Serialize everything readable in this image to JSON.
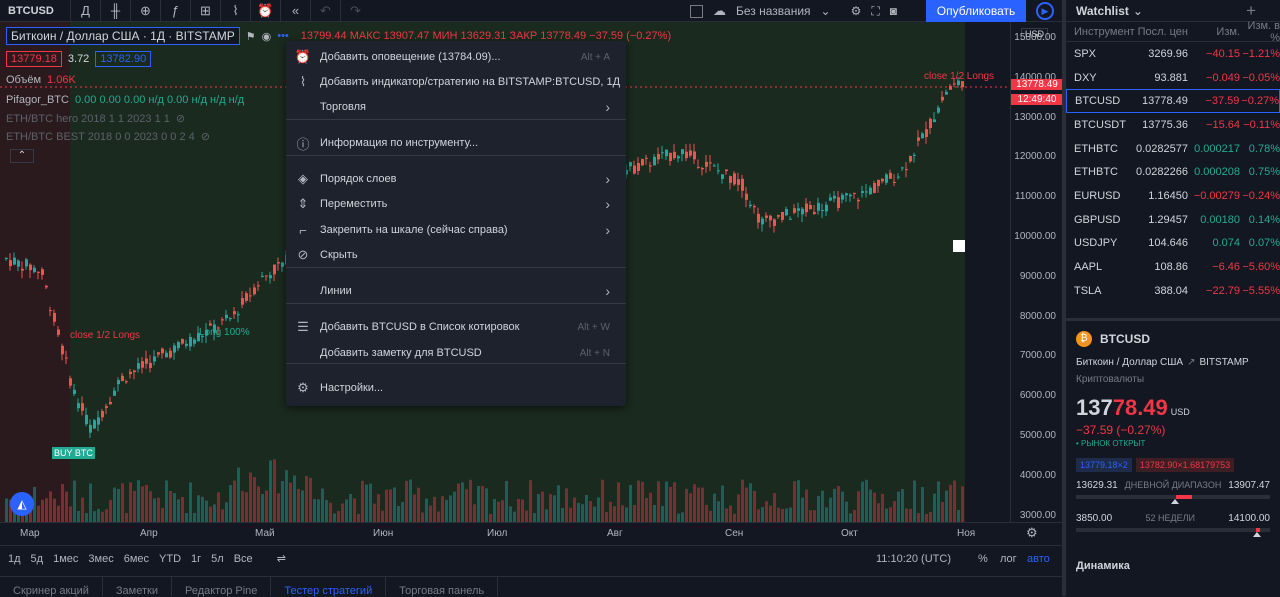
{
  "toolbar": {
    "symbol": "BTCUSD",
    "interval_icon": "candles-icon",
    "layout_name": "Без названия",
    "publish": "Опубликовать"
  },
  "legend": {
    "title": "Биткоин / Доллар США · 1Д · BITSTAMP",
    "ohlc": "13799.44  МАКС 13907.47  МИН 13629.31  ЗАКР 13778.49  −37.59 (−0.27%)",
    "bid": "13779.18",
    "spread": "3.72",
    "ask": "13782.90",
    "volume_label": "Объём",
    "volume_value": "1.06K",
    "ind1": "Pifagor_BTC",
    "ind1_vals": "0.00  0.00  0.00  н/д  0.00  н/д  н/д  н/д",
    "ind2": "ETH/BTC hero 2018 1 1 2023 1 1",
    "ind3": "ETH/BTC BEST 2018 0 0 2023 0 0 2 4"
  },
  "price_axis": {
    "currency": "USD",
    "ticks": [
      "15000.00",
      "14000.00",
      "13000.00",
      "12000.00",
      "11000.00",
      "10000.00",
      "9000.00",
      "8000.00",
      "7000.00",
      "6000.00",
      "5000.00",
      "4000.00",
      "3000.00"
    ],
    "last_price": "13778.49",
    "countdown": "12:49:40"
  },
  "annotations": {
    "close_half_right": "close 1/2 Longs",
    "close_half_left": "close 1/2 Longs",
    "long_100": "Long 100%",
    "buy": "BUY BTC"
  },
  "time_axis": [
    "Мар",
    "Апр",
    "Май",
    "Июн",
    "Июл",
    "Авг",
    "Сен",
    "Окт",
    "Ноя"
  ],
  "range_bar": {
    "ranges": [
      "1д",
      "5д",
      "1мес",
      "3мес",
      "6мес",
      "YTD",
      "1г",
      "5л",
      "Все"
    ],
    "time": "11:10:20 (UTC)",
    "pct": "%",
    "log": "лог",
    "auto": "авто"
  },
  "bottom_tabs": [
    "Скринер акций",
    "Заметки",
    "Редактор Pine",
    "Тестер стратегий",
    "Торговая панель"
  ],
  "context_menu": [
    {
      "icon": "alarm-clock-icon",
      "label": "Добавить оповещение (13784.09)...",
      "shortcut": "Alt + A"
    },
    {
      "icon": "indicator-icon",
      "label": "Добавить индикатор/стратегию на BITSTAMP:BTCUSD, 1Д",
      "shortcut": ""
    },
    {
      "icon": "",
      "label": "Торговля",
      "shortcut": "",
      "arrow": true
    },
    {
      "icon": "info-icon",
      "label": "Информация по инструменту...",
      "shortcut": ""
    },
    {
      "icon": "layers-icon",
      "label": "Порядок слоев",
      "shortcut": "",
      "arrow": true
    },
    {
      "icon": "move-icon",
      "label": "Переместить",
      "shortcut": "",
      "arrow": true
    },
    {
      "icon": "pin-scale-icon",
      "label": "Закрепить на шкале (сейчас справа)",
      "shortcut": "",
      "arrow": true
    },
    {
      "icon": "hide-eye-icon",
      "label": "Скрыть",
      "shortcut": ""
    },
    {
      "icon": "",
      "label": "Линии",
      "shortcut": "",
      "arrow": true
    },
    {
      "icon": "watchlist-add-icon",
      "label": "Добавить BTCUSD в Список котировок",
      "shortcut": "Alt + W"
    },
    {
      "icon": "",
      "label": "Добавить заметку для BTCUSD",
      "shortcut": "Alt + N"
    },
    {
      "icon": "gear-icon",
      "label": "Настройки...",
      "shortcut": ""
    }
  ],
  "watchlist": {
    "title": "Watchlist",
    "cols": [
      "Инструмент",
      "Посл. цен",
      "Изм.",
      "Изм. в %"
    ],
    "rows": [
      {
        "sym": "SPX",
        "last": "3269.96",
        "chg": "−40.15",
        "pct": "−1.21%",
        "neg": true
      },
      {
        "sym": "DXY",
        "last": "93.881",
        "chg": "−0.049",
        "pct": "−0.05%",
        "neg": true
      },
      {
        "sym": "BTCUSD",
        "last": "13778.49",
        "chg": "−37.59",
        "pct": "−0.27%",
        "neg": true,
        "sel": true
      },
      {
        "sym": "BTCUSDT",
        "last": "13775.36",
        "chg": "−15.64",
        "pct": "−0.11%",
        "neg": true
      },
      {
        "sym": "ETHBTC",
        "last": "0.0282577",
        "chg": "0.000217",
        "pct": "0.78%",
        "neg": false
      },
      {
        "sym": "ETHBTC",
        "last": "0.0282266",
        "chg": "0.000208",
        "pct": "0.75%",
        "neg": false
      },
      {
        "sym": "EURUSD",
        "last": "1.16450",
        "chg": "−0.00279",
        "pct": "−0.24%",
        "neg": true
      },
      {
        "sym": "GBPUSD",
        "last": "1.29457",
        "chg": "0.00180",
        "pct": "0.14%",
        "neg": false
      },
      {
        "sym": "USDJPY",
        "last": "104.646",
        "chg": "0.074",
        "pct": "0.07%",
        "neg": false
      },
      {
        "sym": "AAPL",
        "last": "108.86",
        "chg": "−6.46",
        "pct": "−5.60%",
        "neg": true
      },
      {
        "sym": "TSLA",
        "last": "388.04",
        "chg": "−22.79",
        "pct": "−5.55%",
        "neg": true
      }
    ]
  },
  "details": {
    "sym": "BTCUSD",
    "name": "Биткоин / Доллар США",
    "exchange": "BITSTAMP",
    "type": "Криптовалюты",
    "price_main": "137",
    "price_tail": "78.49",
    "currency": "USD",
    "change": "−37.59 (−0.27%)",
    "market": "• РЫНОК ОТКРЫТ",
    "bid": "13779.18×2",
    "ask": "13782.90×1.68179753",
    "day_low": "13629.31",
    "day_label": "ДНЕВНОЙ ДИАПАЗОН",
    "day_high": "13907.47",
    "w_low": "3850.00",
    "w_label": "52 НЕДЕЛИ",
    "w_high": "14100.00",
    "dynamics": "Динамика"
  }
}
